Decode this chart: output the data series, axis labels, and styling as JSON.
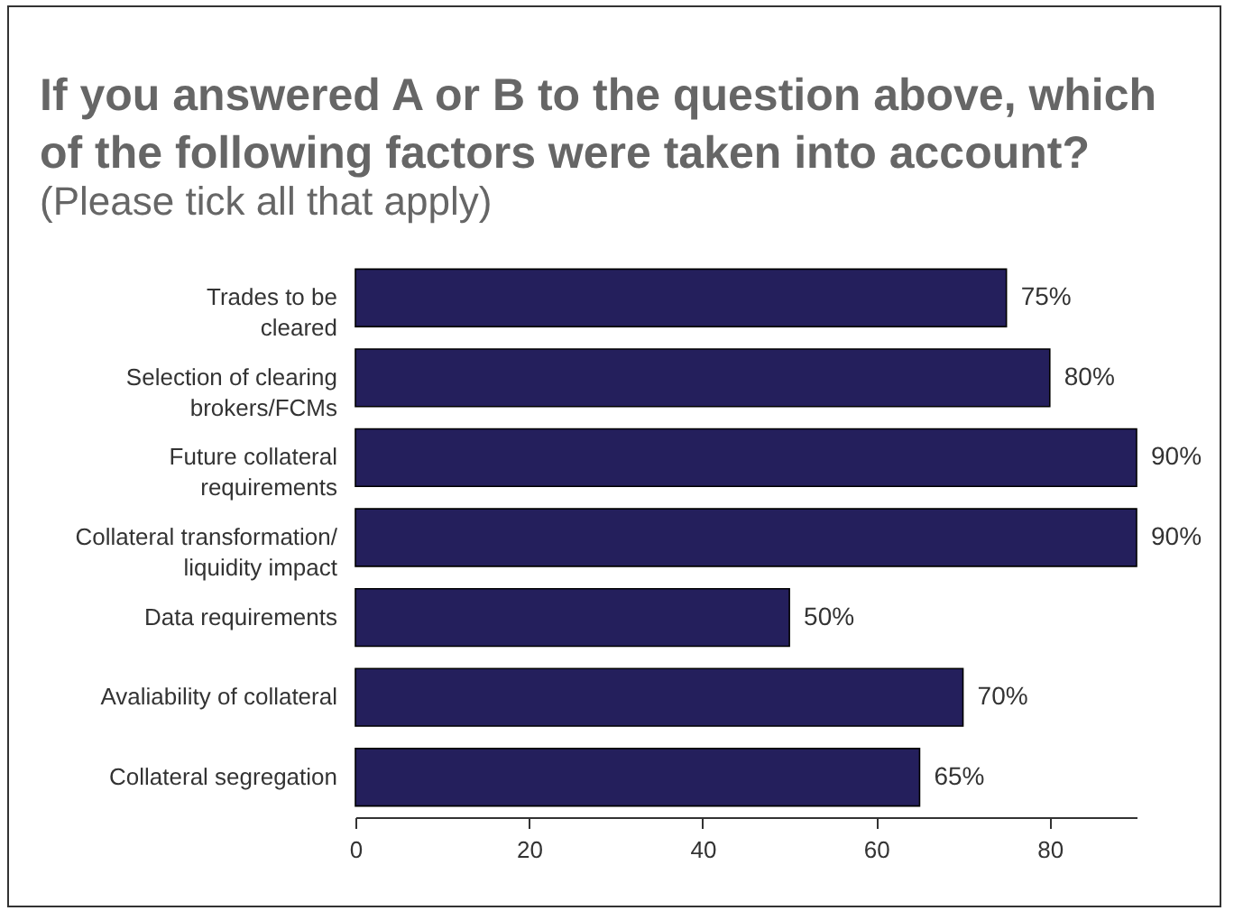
{
  "chart_data": {
    "type": "bar",
    "orientation": "horizontal",
    "title": "If you answered A or B to the question above, which of the following factors were taken into account?",
    "subtitle": "(Please tick all that apply)",
    "categories": [
      "Trades to be\ncleared",
      "Selection of clearing\nbrokers/FCMs",
      "Future collateral\nrequirements",
      "Collateral transformation/\nliquidity impact",
      "Data requirements",
      "Avaliability of collateral",
      "Collateral segregation"
    ],
    "values": [
      75,
      80,
      90,
      90,
      50,
      70,
      65
    ],
    "value_labels": [
      "75%",
      "80%",
      "90%",
      "90%",
      "50%",
      "70%",
      "65%"
    ],
    "color": "#241f5c",
    "xlim": [
      0,
      90
    ],
    "xticks": [
      0,
      20,
      40,
      60,
      80
    ],
    "grid": false
  }
}
